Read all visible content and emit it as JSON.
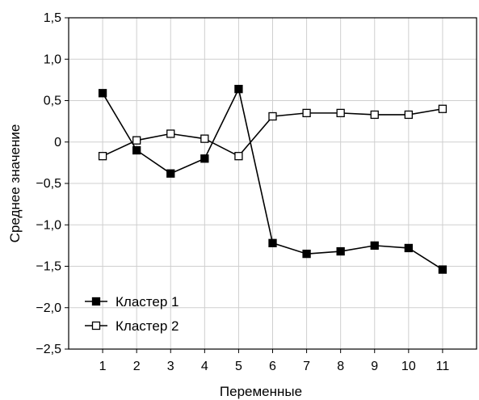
{
  "chart_data": {
    "type": "line",
    "xlabel": "Переменные",
    "ylabel": "Среднее значение",
    "x": [
      1,
      2,
      3,
      4,
      5,
      6,
      7,
      8,
      9,
      10,
      11
    ],
    "x_tick_labels": [
      "1",
      "2",
      "3",
      "4",
      "5",
      "6",
      "7",
      "8",
      "9",
      "10",
      "11"
    ],
    "xlim": [
      0,
      12
    ],
    "ylim": [
      -2.5,
      1.5
    ],
    "y_ticks": [
      1.5,
      1.0,
      0.5,
      0,
      -0.5,
      -1.0,
      -1.5,
      -2.0,
      -2.5
    ],
    "y_tick_labels": [
      "1,5",
      "1,0",
      "0,5",
      "0",
      "−0,5",
      "−1,0",
      "−1,5",
      "−2,0",
      "−2,5"
    ],
    "grid": true,
    "legend_position": "bottom-left",
    "series": [
      {
        "name": "Кластер 1",
        "marker": "filled-square",
        "color": "#000000",
        "values": [
          0.59,
          -0.1,
          -0.38,
          -0.2,
          0.64,
          -1.22,
          -1.35,
          -1.32,
          -1.25,
          -1.28,
          -1.54
        ]
      },
      {
        "name": "Кластер 2",
        "marker": "open-square",
        "color": "#000000",
        "values": [
          -0.17,
          0.02,
          0.1,
          0.04,
          -0.17,
          0.31,
          0.35,
          0.35,
          0.33,
          0.33,
          0.4
        ]
      }
    ]
  }
}
